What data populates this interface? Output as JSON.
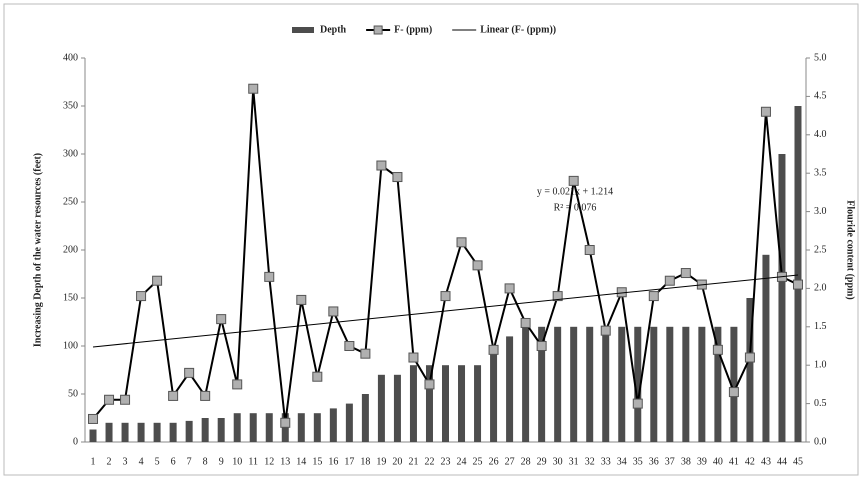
{
  "chart_data": {
    "type": "bar-line",
    "categories": [
      "1",
      "2",
      "3",
      "4",
      "5",
      "6",
      "7",
      "8",
      "9",
      "10",
      "11",
      "12",
      "13",
      "14",
      "15",
      "16",
      "17",
      "18",
      "19",
      "20",
      "21",
      "22",
      "23",
      "24",
      "25",
      "26",
      "27",
      "28",
      "29",
      "30",
      "31",
      "32",
      "33",
      "34",
      "35",
      "36",
      "37",
      "38",
      "39",
      "40",
      "41",
      "42",
      "43",
      "44",
      "45"
    ],
    "series": [
      {
        "name": "Depth",
        "type": "bar",
        "color": "#4d4d4d",
        "axis": "y",
        "values": [
          13,
          20,
          20,
          20,
          20,
          20,
          22,
          25,
          25,
          30,
          30,
          30,
          30,
          30,
          30,
          35,
          40,
          50,
          70,
          70,
          80,
          80,
          80,
          80,
          80,
          100,
          110,
          120,
          120,
          120,
          120,
          120,
          120,
          120,
          120,
          120,
          120,
          120,
          120,
          120,
          120,
          150,
          195,
          300,
          350
        ]
      },
      {
        "name": "F- (ppm)",
        "type": "line",
        "color": "#000000",
        "marker_color": "#b0b0b0",
        "axis": "y2",
        "values": [
          0.3,
          0.55,
          0.55,
          1.9,
          2.1,
          0.6,
          0.9,
          0.6,
          1.6,
          0.75,
          4.6,
          2.15,
          0.25,
          1.85,
          0.85,
          1.7,
          1.25,
          1.15,
          3.6,
          3.45,
          1.1,
          0.75,
          1.9,
          2.6,
          2.3,
          1.2,
          2.0,
          1.55,
          1.25,
          1.9,
          3.4,
          2.5,
          1.45,
          1.95,
          0.5,
          1.9,
          2.1,
          2.2,
          2.05,
          1.2,
          0.65,
          1.1,
          4.3,
          2.15,
          2.05
        ]
      }
    ],
    "trendline": {
      "name": "Linear (F- (ppm))",
      "of_series": 1,
      "color": "#000000"
    },
    "annotations": [
      "y = 0.021x + 1.214",
      "R² = 0.076"
    ],
    "ylabel": "Increasing Depth of the water resources (feet)",
    "y2label": "Flouride content (ppm)",
    "ylim": [
      0,
      400
    ],
    "yticks": [
      0,
      50,
      100,
      150,
      200,
      250,
      300,
      350,
      400
    ],
    "y2lim": [
      0,
      5
    ],
    "y2ticks": [
      {
        "value": 0,
        "label": "0.0"
      },
      {
        "value": 0.5,
        "label": "0.5"
      },
      {
        "value": 1,
        "label": "1.0"
      },
      {
        "value": 1.5,
        "label": "1.5"
      },
      {
        "value": 2,
        "label": "2.0"
      },
      {
        "value": 2.5,
        "label": "2.5"
      },
      {
        "value": 3,
        "label": "3.0"
      },
      {
        "value": 3.5,
        "label": "3.5"
      },
      {
        "value": 4,
        "label": "4.0"
      },
      {
        "value": 4.5,
        "label": "4.5"
      },
      {
        "value": 5,
        "label": "5.0"
      }
    ],
    "legend": "top",
    "grid": false
  }
}
